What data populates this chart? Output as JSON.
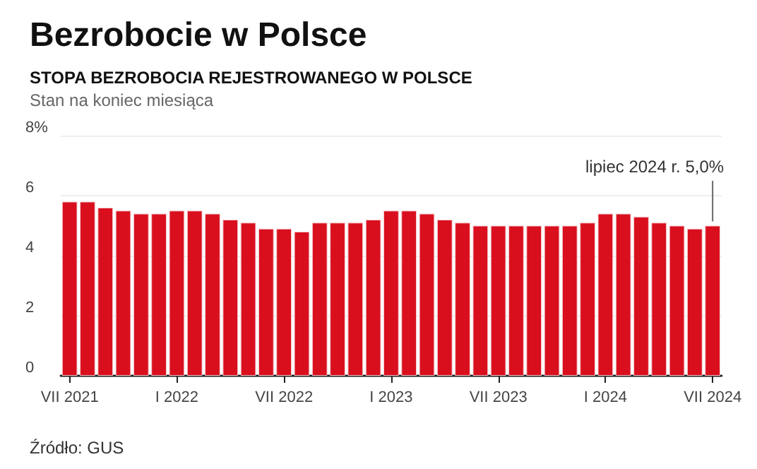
{
  "chart_data": {
    "type": "bar",
    "title": "Bezrobocie w Polsce",
    "subtitle": "STOPA BEZROBOCIA REJESTROWANEGO W POLSCE",
    "annotations": [
      "Stan na koniec miesiąca",
      "Źródło: GUS",
      {
        "text": "lipiec 2024 r. 5,0%",
        "x": "VII 2024",
        "y": 5.0
      }
    ],
    "categories": [
      "VII 2021",
      null,
      null,
      null,
      null,
      null,
      "I 2022",
      null,
      null,
      null,
      null,
      null,
      "VII 2022",
      null,
      null,
      null,
      null,
      null,
      "I 2023",
      null,
      null,
      null,
      null,
      null,
      "VII 2023",
      null,
      null,
      null,
      null,
      null,
      "I 2024",
      null,
      null,
      null,
      null,
      null,
      "VII 2024"
    ],
    "values": [
      5.8,
      5.8,
      5.6,
      5.5,
      5.4,
      5.4,
      5.5,
      5.5,
      5.4,
      5.2,
      5.1,
      4.9,
      4.9,
      4.8,
      5.1,
      5.1,
      5.1,
      5.2,
      5.5,
      5.5,
      5.4,
      5.2,
      5.1,
      5.0,
      5.0,
      5.0,
      5.0,
      5.0,
      5.0,
      5.1,
      5.4,
      5.4,
      5.3,
      5.1,
      5.0,
      4.9,
      5.0
    ],
    "color": "#d90f1e",
    "ylim": [
      0,
      8
    ],
    "yticks": [
      0,
      2,
      4,
      6,
      {
        "value": 8,
        "label": "8%"
      }
    ],
    "grid": "y"
  }
}
